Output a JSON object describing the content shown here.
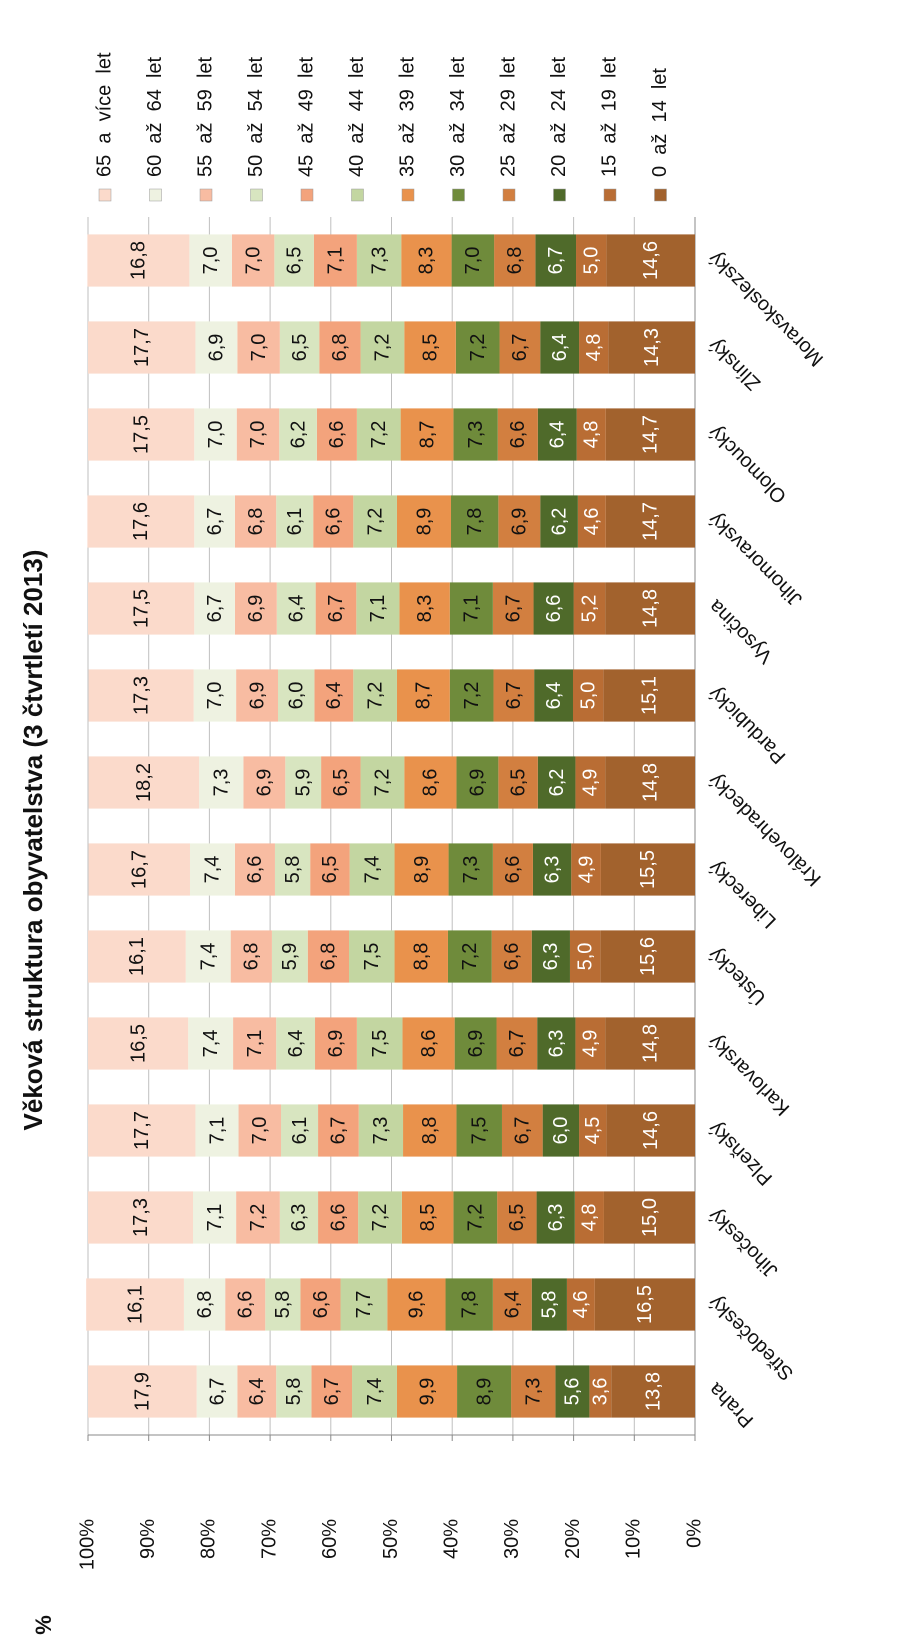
{
  "chart_data": {
    "type": "stacked_bar",
    "title": "Věková struktura obyvatelstva (3 čtvrtletí 2013)",
    "y_label": "%",
    "categories": [
      "Praha",
      "Středočeský",
      "Jihočeský",
      "Plzeňský",
      "Karlovarský",
      "Ústecký",
      "Liberecký",
      "Královehradecký",
      "Pardubický",
      "Vysočina",
      "Jihomoravský",
      "Olomoucký",
      "Zlínský",
      "Moravskoslezský"
    ],
    "ylim": [
      0,
      100
    ],
    "yticks": [
      {
        "value": 0,
        "label": "0%"
      },
      {
        "value": 10,
        "label": "10%"
      },
      {
        "value": 20,
        "label": "20%"
      },
      {
        "value": 30,
        "label": "30%"
      },
      {
        "value": 40,
        "label": "40%"
      },
      {
        "value": 50,
        "label": "50%"
      },
      {
        "value": 60,
        "label": "60%"
      },
      {
        "value": 70,
        "label": "70%"
      },
      {
        "value": 80,
        "label": "80%"
      },
      {
        "value": 90,
        "label": "90%"
      },
      {
        "value": 100,
        "label": "100%"
      }
    ],
    "grid": true,
    "legend": "right",
    "series": [
      {
        "name": "0  až  14  let",
        "color": "#a2622d",
        "label_color": "#ffffff",
        "values": [
          13.8,
          16.5,
          15.0,
          14.6,
          14.8,
          15.6,
          15.5,
          14.8,
          15.1,
          14.8,
          14.7,
          14.7,
          14.3,
          14.6
        ],
        "value_labels": [
          "13,8",
          "16,5",
          "15,0",
          "14,6",
          "14,8",
          "15,6",
          "15,5",
          "14,8",
          "15,1",
          "14,8",
          "14,7",
          "14,7",
          "14,3",
          "14,6"
        ]
      },
      {
        "name": "15  až  19  let",
        "color": "#b96d34",
        "label_color": "#ffffff",
        "values": [
          3.6,
          4.6,
          4.8,
          4.5,
          4.9,
          5.0,
          4.9,
          4.9,
          5.0,
          5.2,
          4.6,
          4.8,
          4.8,
          5.0
        ],
        "value_labels": [
          "3,6",
          "4,6",
          "4,8",
          "4,5",
          "4,9",
          "5,0",
          "4,9",
          "4,9",
          "5,0",
          "5,2",
          "4,6",
          "4,8",
          "4,8",
          "5,0"
        ]
      },
      {
        "name": "20  až  24  let",
        "color": "#4f6a2a",
        "label_color": "#ffffff",
        "values": [
          5.6,
          5.8,
          6.3,
          6.0,
          6.3,
          6.3,
          6.3,
          6.2,
          6.4,
          6.6,
          6.2,
          6.4,
          6.4,
          6.7
        ],
        "value_labels": [
          "5,6",
          "5,8",
          "6,3",
          "6,0",
          "6,3",
          "6,3",
          "6,3",
          "6,2",
          "6,4",
          "6,6",
          "6,2",
          "6,4",
          "6,4",
          "6,7"
        ]
      },
      {
        "name": "25  až  29  let",
        "color": "#d27f40",
        "label_color": "#111111",
        "values": [
          7.3,
          6.4,
          6.5,
          6.7,
          6.7,
          6.6,
          6.6,
          6.5,
          6.7,
          6.7,
          6.9,
          6.6,
          6.7,
          6.8
        ],
        "value_labels": [
          "7,3",
          "6,4",
          "6,5",
          "6,7",
          "6,7",
          "6,6",
          "6,6",
          "6,5",
          "6,7",
          "6,7",
          "6,9",
          "6,6",
          "6,7",
          "6,8"
        ]
      },
      {
        "name": "30  až  34  let",
        "color": "#6f8b3b",
        "label_color": "#111111",
        "values": [
          8.9,
          7.8,
          7.2,
          7.5,
          6.9,
          7.2,
          7.3,
          6.9,
          7.2,
          7.1,
          7.8,
          7.3,
          7.2,
          7.0
        ],
        "value_labels": [
          "8,9",
          "7,8",
          "7,2",
          "7,5",
          "6,9",
          "7,2",
          "7,3",
          "6,9",
          "7,2",
          "7,1",
          "7,8",
          "7,3",
          "7,2",
          "7,0"
        ]
      },
      {
        "name": "35  až  39  let",
        "color": "#e9924c",
        "label_color": "#111111",
        "values": [
          9.9,
          9.6,
          8.5,
          8.8,
          8.6,
          8.8,
          8.9,
          8.6,
          8.7,
          8.3,
          8.9,
          8.7,
          8.5,
          8.3
        ],
        "value_labels": [
          "9,9",
          "9,6",
          "8,5",
          "8,8",
          "8,6",
          "8,8",
          "8,9",
          "8,6",
          "8,7",
          "8,3",
          "8,9",
          "8,7",
          "8,5",
          "8,3"
        ]
      },
      {
        "name": "40  až  44  let",
        "color": "#c3d6a1",
        "label_color": "#111111",
        "values": [
          7.4,
          7.7,
          7.2,
          7.3,
          7.5,
          7.5,
          7.4,
          7.2,
          7.2,
          7.1,
          7.2,
          7.2,
          7.2,
          7.3
        ],
        "value_labels": [
          "7,4",
          "7,7",
          "7,2",
          "7,3",
          "7,5",
          "7,5",
          "7,4",
          "7,2",
          "7,2",
          "7,1",
          "7,2",
          "7,2",
          "7,2",
          "7,3"
        ]
      },
      {
        "name": "45  až  49  let",
        "color": "#f3a37c",
        "label_color": "#111111",
        "values": [
          6.7,
          6.6,
          6.6,
          6.7,
          6.9,
          6.8,
          6.5,
          6.5,
          6.4,
          6.7,
          6.6,
          6.6,
          6.8,
          7.1
        ],
        "value_labels": [
          "6,7",
          "6,6",
          "6,6",
          "6,7",
          "6,9",
          "6,8",
          "6,5",
          "6,5",
          "6,4",
          "6,7",
          "6,6",
          "6,6",
          "6,8",
          "7,1"
        ]
      },
      {
        "name": "50  až  54  let",
        "color": "#d8e5c0",
        "label_color": "#111111",
        "values": [
          5.8,
          5.8,
          6.3,
          6.1,
          6.4,
          5.9,
          5.8,
          5.9,
          6.0,
          6.4,
          6.1,
          6.2,
          6.5,
          6.5
        ],
        "value_labels": [
          "5,8",
          "5,8",
          "6,3",
          "6,1",
          "6,4",
          "5,9",
          "5,8",
          "5,9",
          "6,0",
          "6,4",
          "6,1",
          "6,2",
          "6,5",
          "6,5"
        ]
      },
      {
        "name": "55  až  59  let",
        "color": "#f8bca2",
        "label_color": "#111111",
        "values": [
          6.4,
          6.6,
          7.2,
          7.0,
          7.1,
          6.8,
          6.6,
          6.9,
          6.9,
          6.9,
          6.8,
          7.0,
          7.0,
          7.0
        ],
        "value_labels": [
          "6,4",
          "6,6",
          "7,2",
          "7,0",
          "7,1",
          "6,8",
          "6,6",
          "6,9",
          "6,9",
          "6,9",
          "6,8",
          "7,0",
          "7,0",
          "7,0"
        ]
      },
      {
        "name": "60  až  64  let",
        "color": "#eef2e1",
        "label_color": "#111111",
        "values": [
          6.7,
          6.8,
          7.1,
          7.1,
          7.4,
          7.4,
          7.4,
          7.3,
          7.0,
          6.7,
          6.7,
          7.0,
          6.9,
          7.0
        ],
        "value_labels": [
          "6,7",
          "6,8",
          "7,1",
          "7,1",
          "7,4",
          "7,4",
          "7,4",
          "7,3",
          "7,0",
          "6,7",
          "6,7",
          "7,0",
          "6,9",
          "7,0"
        ]
      },
      {
        "name": "65  a  více  let",
        "color": "#fbdacb",
        "label_color": "#111111",
        "values": [
          17.9,
          16.1,
          17.3,
          17.7,
          16.5,
          16.1,
          16.7,
          18.2,
          17.3,
          17.5,
          17.6,
          17.5,
          17.7,
          16.8
        ],
        "value_labels": [
          "17,9",
          "16,1",
          "17,3",
          "17,7",
          "16,5",
          "16,1",
          "16,7",
          "18,2",
          "17,3",
          "17,5",
          "17,6",
          "17,5",
          "17,7",
          "16,8"
        ]
      }
    ]
  }
}
